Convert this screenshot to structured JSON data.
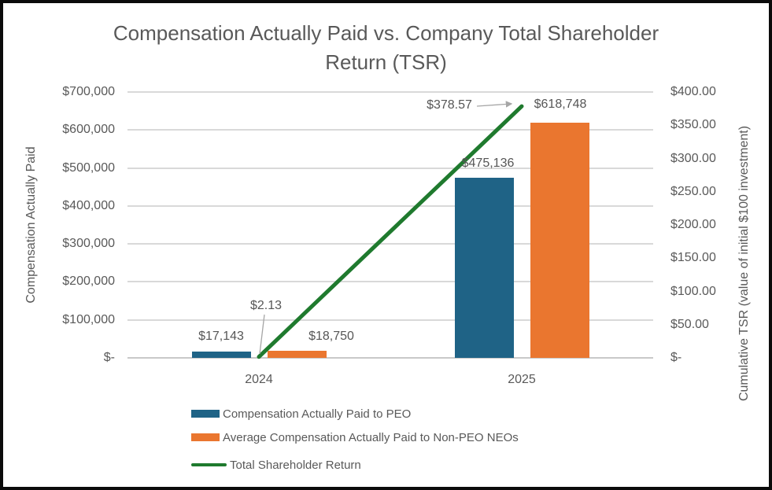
{
  "title": {
    "line1": "Compensation Actually Paid vs. Company Total Shareholder",
    "line2": "Return (TSR)"
  },
  "colors": {
    "peo_blue": "#1F6386",
    "neo_orange": "#EA762F",
    "tsr_green": "#1F7A2E",
    "text_gray": "#595959",
    "gridline_gray": "#D9D9D9",
    "leader_gray": "#A6A6A6"
  },
  "chart_data": {
    "type": "bar",
    "subtype": "combo-bar-line-two-axes",
    "categories": [
      "2024",
      "2025"
    ],
    "series": [
      {
        "name": "Compensation Actually Paid to PEO",
        "type": "bar",
        "axis": "left",
        "color_key": "peo_blue",
        "values": [
          17143,
          475136
        ],
        "labels": [
          "$17,143",
          "$475,136"
        ]
      },
      {
        "name": "Average Compensation Actually Paid to Non-PEO NEOs",
        "type": "bar",
        "axis": "left",
        "color_key": "neo_orange",
        "values": [
          18750,
          618748
        ],
        "labels": [
          "$18,750",
          "$618,748"
        ]
      },
      {
        "name": "Total Shareholder Return",
        "type": "line",
        "axis": "right",
        "color_key": "tsr_green",
        "values": [
          2.13,
          378.57
        ],
        "labels": [
          "$2.13",
          "$378.57"
        ]
      }
    ],
    "left_axis": {
      "title": "Compensation Actually Paid",
      "min": 0,
      "max": 700000,
      "ticks": [
        "$700,000",
        "$600,000",
        "$500,000",
        "$400,000",
        "$300,000",
        "$200,000",
        "$100,000",
        "$-"
      ]
    },
    "right_axis": {
      "title": "Cumulative TSR (value of initial $100 investment)",
      "min": 0,
      "max": 400,
      "ticks": [
        "$400.00",
        "$350.00",
        "$300.00",
        "$250.00",
        "$200.00",
        "$150.00",
        "$100.00",
        "$50.00",
        "$-"
      ]
    },
    "x_axis": {
      "labels": [
        "2024",
        "2025"
      ]
    },
    "legend_position": "bottom-left",
    "grid": true
  }
}
